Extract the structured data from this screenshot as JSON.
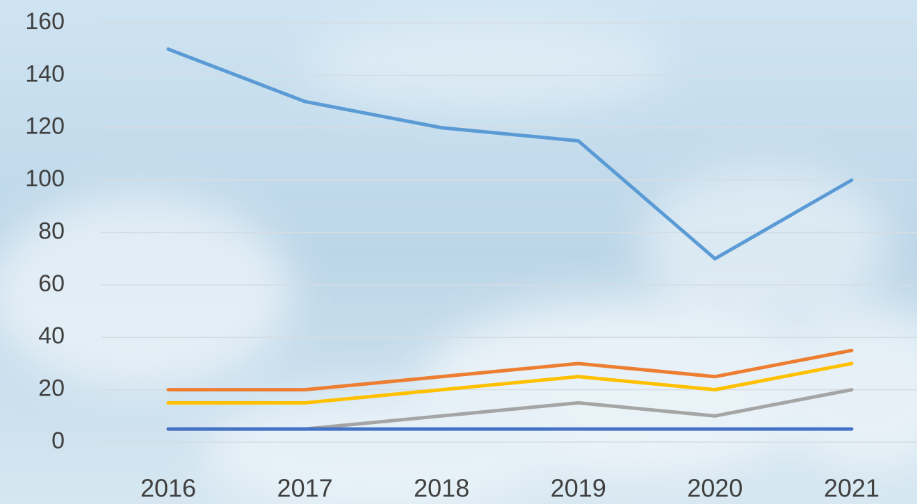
{
  "chart_data": {
    "type": "line",
    "categories": [
      "2016",
      "2017",
      "2018",
      "2019",
      "2020",
      "2021"
    ],
    "series": [
      {
        "color": "#5b9bd5",
        "values": [
          150,
          130,
          120,
          115,
          70,
          100
        ]
      },
      {
        "color": "#ed7d31",
        "values": [
          20,
          20,
          25,
          30,
          25,
          35
        ]
      },
      {
        "color": "#ffc000",
        "values": [
          15,
          15,
          20,
          25,
          20,
          30
        ]
      },
      {
        "color": "#a5a5a5",
        "values": [
          5,
          5,
          10,
          15,
          10,
          20
        ]
      },
      {
        "color": "#4472c4",
        "values": [
          5,
          5,
          5,
          5,
          5,
          5
        ]
      }
    ],
    "ylim": [
      0,
      160
    ],
    "yticks": [
      0,
      20,
      40,
      60,
      80,
      100,
      120,
      140,
      160
    ],
    "grid": true
  }
}
